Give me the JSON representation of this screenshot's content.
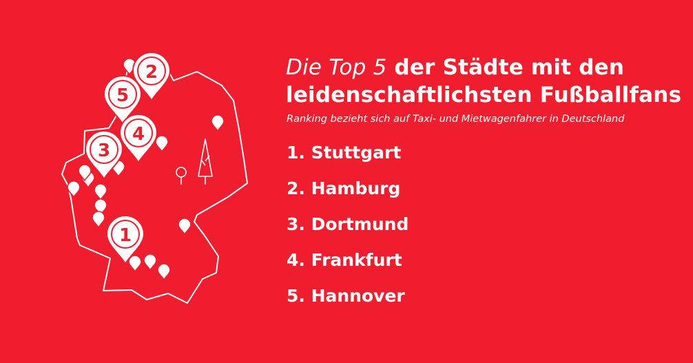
{
  "header": {
    "title_light": "Die Top 5",
    "title_bold_line1": " der Städte mit den",
    "title_bold_line2": "leidenschaftlichsten Fußballfans",
    "subtitle": "Ranking bezieht sich auf Taxi- und Mietwagenfahrer in Deutschland"
  },
  "ranking": [
    "1. Stuttgart",
    "2. Hamburg",
    "3. Dortmund",
    "4. Frankfurt",
    "5. Hannover"
  ],
  "map": {
    "pin_labels": [
      "1",
      "2",
      "3",
      "4",
      "5"
    ]
  },
  "colors": {
    "background": "#ef1d2e",
    "foreground": "#ffffff",
    "pin_text": "#e8212f"
  }
}
